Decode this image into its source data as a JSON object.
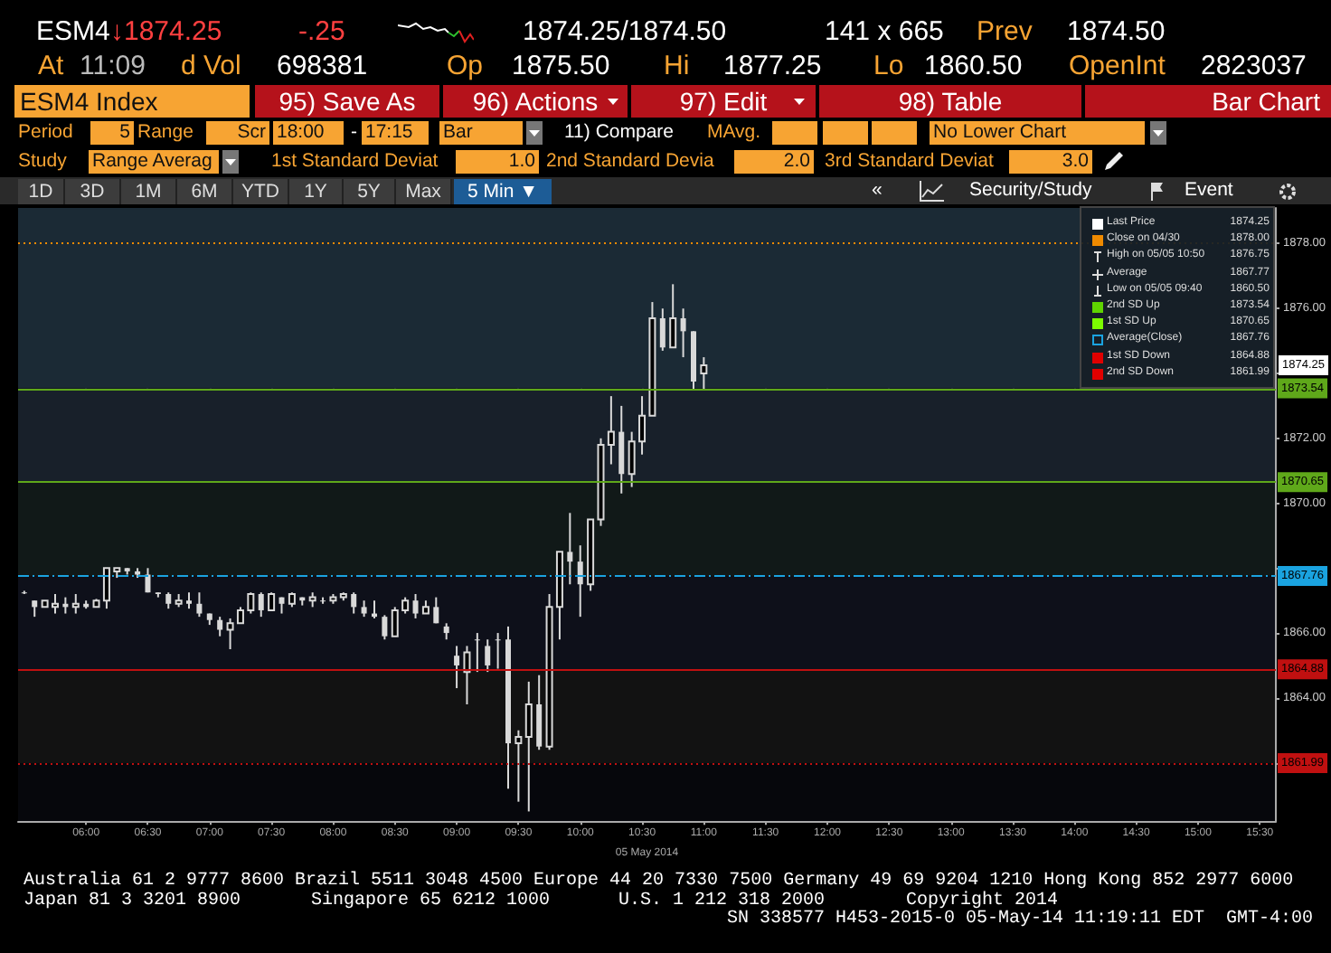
{
  "chart_data": {
    "type": "candlestick",
    "xlabel": "05 May 2014",
    "color": "#d9d9d9",
    "x": [
      5.5,
      5.5833,
      5.6667,
      5.75,
      5.8333,
      5.9167,
      6,
      6.0833,
      6.1667,
      6.25,
      6.3333,
      6.4167,
      6.5,
      6.5833,
      6.6667,
      6.75,
      6.8333,
      6.9167,
      7,
      7.0833,
      7.1667,
      7.25,
      7.3333,
      7.4167,
      7.5,
      7.5833,
      7.6667,
      7.75,
      7.8333,
      7.9167,
      8,
      8.0833,
      8.1667,
      8.25,
      8.3333,
      8.4167,
      8.5,
      8.5833,
      8.6667,
      8.75,
      8.8333,
      8.9167,
      9,
      9.0833,
      9.1667,
      9.25,
      9.3333,
      9.4167,
      9.5,
      9.5833,
      9.6667,
      9.75,
      9.8333,
      9.9167,
      10,
      10.0833,
      10.1667,
      10.25,
      10.3333,
      10.4167,
      10.5,
      10.5833,
      10.6667,
      10.75,
      10.8333,
      10.9167,
      11
    ],
    "ohlc": [
      [
        1867.25,
        1867.3,
        1867.2,
        1867.25
      ],
      [
        1867.0,
        1867.0,
        1866.5,
        1866.8
      ],
      [
        1866.8,
        1867.0,
        1866.8,
        1867.0
      ],
      [
        1866.8,
        1867.2,
        1866.6,
        1866.9
      ],
      [
        1866.9,
        1867.1,
        1866.6,
        1866.8
      ],
      [
        1866.8,
        1867.2,
        1866.6,
        1866.9
      ],
      [
        1866.9,
        1867.0,
        1866.75,
        1866.8
      ],
      [
        1866.8,
        1867.05,
        1866.8,
        1867.0
      ],
      [
        1867.0,
        1868.0,
        1866.75,
        1868.0
      ],
      [
        1867.9,
        1868.0,
        1867.7,
        1868.0
      ],
      [
        1868.0,
        1868.0,
        1867.8,
        1867.9
      ],
      [
        1867.9,
        1868.0,
        1867.7,
        1867.8
      ],
      [
        1867.8,
        1868.0,
        1867.25,
        1867.25
      ],
      [
        1867.25,
        1867.25,
        1867.1,
        1867.2
      ],
      [
        1867.2,
        1867.25,
        1866.75,
        1866.9
      ],
      [
        1866.9,
        1867.2,
        1866.8,
        1867.0
      ],
      [
        1867.0,
        1867.25,
        1866.75,
        1866.9
      ],
      [
        1866.9,
        1867.25,
        1866.5,
        1866.6
      ],
      [
        1866.6,
        1866.6,
        1866.25,
        1866.4
      ],
      [
        1866.4,
        1866.5,
        1865.9,
        1866.1
      ],
      [
        1866.1,
        1866.45,
        1865.5,
        1866.3
      ],
      [
        1866.3,
        1866.8,
        1866.3,
        1866.7
      ],
      [
        1866.7,
        1867.25,
        1866.6,
        1867.2
      ],
      [
        1867.2,
        1867.25,
        1866.5,
        1866.7
      ],
      [
        1866.7,
        1867.25,
        1866.7,
        1867.2
      ],
      [
        1867.1,
        1867.1,
        1866.6,
        1866.9
      ],
      [
        1866.9,
        1867.25,
        1866.8,
        1867.2
      ],
      [
        1867.1,
        1867.1,
        1866.85,
        1867.0
      ],
      [
        1867.0,
        1867.25,
        1866.8,
        1867.1
      ],
      [
        1867.0,
        1867.1,
        1866.9,
        1867.0
      ],
      [
        1867.0,
        1867.2,
        1866.9,
        1867.1
      ],
      [
        1867.1,
        1867.25,
        1867.0,
        1867.2
      ],
      [
        1867.2,
        1867.25,
        1866.6,
        1866.8
      ],
      [
        1866.8,
        1867.0,
        1866.5,
        1866.6
      ],
      [
        1866.6,
        1867.0,
        1866.45,
        1866.5
      ],
      [
        1866.5,
        1866.55,
        1865.8,
        1865.9
      ],
      [
        1865.9,
        1866.8,
        1865.9,
        1866.7
      ],
      [
        1866.7,
        1867.1,
        1866.6,
        1867.0
      ],
      [
        1867.0,
        1867.2,
        1866.45,
        1866.6
      ],
      [
        1866.6,
        1867.0,
        1866.6,
        1866.8
      ],
      [
        1866.8,
        1867.1,
        1866.3,
        1866.3
      ],
      [
        1866.2,
        1866.3,
        1865.8,
        1866.0
      ],
      [
        1865.3,
        1865.6,
        1864.3,
        1865.0
      ],
      [
        1864.8,
        1865.6,
        1863.8,
        1865.4
      ],
      [
        1865.8,
        1866.0,
        1864.8,
        1865.8
      ],
      [
        1865.6,
        1865.8,
        1864.8,
        1865.0
      ],
      [
        1865.8,
        1866.0,
        1864.9,
        1865.8
      ],
      [
        1865.8,
        1866.2,
        1861.2,
        1862.6
      ],
      [
        1862.6,
        1863.0,
        1860.8,
        1862.8
      ],
      [
        1862.8,
        1864.5,
        1860.5,
        1863.8
      ],
      [
        1863.8,
        1864.7,
        1862.4,
        1862.5
      ],
      [
        1862.5,
        1867.2,
        1862.4,
        1866.8
      ],
      [
        1866.8,
        1868.5,
        1865.8,
        1868.5
      ],
      [
        1868.5,
        1869.7,
        1867.5,
        1868.2
      ],
      [
        1868.2,
        1868.7,
        1866.5,
        1867.5
      ],
      [
        1867.5,
        1869.5,
        1867.3,
        1869.5
      ],
      [
        1869.5,
        1872.0,
        1869.3,
        1871.8
      ],
      [
        1871.8,
        1873.3,
        1871.2,
        1872.2
      ],
      [
        1872.2,
        1873.0,
        1870.3,
        1870.9
      ],
      [
        1870.9,
        1872.2,
        1870.5,
        1871.9
      ],
      [
        1871.9,
        1873.3,
        1871.5,
        1872.7
      ],
      [
        1872.7,
        1876.2,
        1872.7,
        1875.7
      ],
      [
        1875.7,
        1876.0,
        1874.7,
        1874.8
      ],
      [
        1874.8,
        1876.75,
        1874.8,
        1875.7
      ],
      [
        1875.7,
        1876.0,
        1874.5,
        1875.3
      ],
      [
        1875.3,
        1875.3,
        1873.5,
        1873.75
      ],
      [
        1874.0,
        1874.5,
        1873.5,
        1874.25
      ]
    ],
    "xlim": [
      5.45,
      15.63
    ],
    "xticks": [
      {
        "value": 6,
        "label": "06:00"
      },
      {
        "value": 6.5,
        "label": "06:30"
      },
      {
        "value": 7,
        "label": "07:00"
      },
      {
        "value": 7.5,
        "label": "07:30"
      },
      {
        "value": 8,
        "label": "08:00"
      },
      {
        "value": 8.5,
        "label": "08:30"
      },
      {
        "value": 9,
        "label": "09:00"
      },
      {
        "value": 9.5,
        "label": "09:30"
      },
      {
        "value": 10,
        "label": "10:00"
      },
      {
        "value": 10.5,
        "label": "10:30"
      },
      {
        "value": 11,
        "label": "11:00"
      },
      {
        "value": 11.5,
        "label": "11:30"
      },
      {
        "value": 12,
        "label": "12:00"
      },
      {
        "value": 12.5,
        "label": "12:30"
      },
      {
        "value": 13,
        "label": "13:00"
      },
      {
        "value": 13.5,
        "label": "13:30"
      },
      {
        "value": 14,
        "label": "14:00"
      },
      {
        "value": 14.5,
        "label": "14:30"
      },
      {
        "value": 15,
        "label": "15:00"
      },
      {
        "value": 15.5,
        "label": "15:30"
      }
    ],
    "ylim": [
      1860.2,
      1879.1
    ],
    "yticks": [
      {
        "value": 1862,
        "label": null
      },
      {
        "value": 1864,
        "label": "1864.00"
      },
      {
        "value": 1866,
        "label": "1866.00"
      },
      {
        "value": 1868,
        "label": null
      },
      {
        "value": 1870,
        "label": "1870.00"
      },
      {
        "value": 1872,
        "label": "1872.00"
      },
      {
        "value": 1874,
        "label": null
      },
      {
        "value": 1876,
        "label": "1876.00"
      },
      {
        "value": 1878,
        "label": "1878.00"
      }
    ],
    "grid": true,
    "bands": [
      {
        "axis": "y",
        "from": 1873.54,
        "to": 1879.1,
        "color": "#1b2a35"
      },
      {
        "axis": "y",
        "from": 1870.65,
        "to": 1873.54,
        "color": "#18202a"
      },
      {
        "axis": "y",
        "from": 1867.76,
        "to": 1870.65,
        "color": "#111918"
      },
      {
        "axis": "y",
        "from": 1864.88,
        "to": 1867.76,
        "color": "#0e101a"
      },
      {
        "axis": "y",
        "from": 1861.99,
        "to": 1864.88,
        "color": "#121212"
      },
      {
        "axis": "y",
        "from": 1860.2,
        "to": 1861.99,
        "color": "#06070c"
      }
    ],
    "ref_lines": [
      {
        "axis": "y",
        "value": 1878,
        "color": "#f08a00",
        "line_style": "dotted"
      },
      {
        "axis": "y",
        "value": 1873.54,
        "label": "1873.54",
        "color": "#5fa81a",
        "line_style": "solid"
      },
      {
        "axis": "y",
        "value": 1870.65,
        "label": "1870.65",
        "color": "#5fa81a",
        "line_style": "solid"
      },
      {
        "axis": "y",
        "value": 1867.76,
        "label": "1867.76",
        "color": "#1aa3e0",
        "line_style": "dashed"
      },
      {
        "axis": "y",
        "value": 1864.88,
        "label": "1864.88",
        "color": "#c01010",
        "line_style": "solid"
      },
      {
        "axis": "y",
        "value": 1861.99,
        "label": "1861.99",
        "color": "#c01010",
        "line_style": "dotted"
      }
    ],
    "annotations": [
      "ESM4",
      "↓1874.25",
      "-.25",
      "1874.25/1874.50",
      "141 x 665",
      "Prev",
      "1874.50",
      "At",
      "11:09",
      "d Vol",
      "698381",
      "Op",
      "1875.50",
      "Hi",
      "1877.25",
      "Lo",
      "1860.50",
      "OpenInt",
      "2823037",
      "ESM4 Index",
      "95) Save As",
      "96) Actions",
      "97) Edit",
      "98) Table",
      "Bar Chart",
      "Period",
      "5",
      "Range",
      "Scr",
      "18:00",
      "-",
      "17:15",
      "Bar",
      "11) Compare",
      "MAvg.",
      "No Lower Chart",
      "Study",
      "Range Averag",
      "1st Standard Deviat",
      "1.0",
      "2nd Standard Devia",
      "2.0",
      "3rd Standard Deviat",
      "3.0",
      "1D",
      "3D",
      "1M",
      "6M",
      "YTD",
      "1Y",
      "5Y",
      "Max",
      "5 Min ▼",
      "«",
      "Security/Study",
      "Event",
      "Last Price",
      "1874.25",
      "Close on 04/30",
      "1878.00",
      "High on 05/05 10:50",
      "1876.75",
      "Average",
      "1867.77",
      "Low on 05/05 09:40",
      "1860.50",
      "2nd SD Up",
      "1873.54",
      "1st SD Up",
      "1870.65",
      "Average(Close)",
      "1867.76",
      "1st SD Down",
      "1864.88",
      "2nd SD Down",
      "1861.99",
      "Australia 61 2 9777 8600 Brazil 5511 3048 4500 Europe 44 20 7330 7500 Germany 49 69 9204 1210 Hong Kong 852 2977 6000",
      "Japan 81 3 3201 8900",
      "Singapore 65 6212 1000",
      "U.S. 1 212 318 2000",
      "Copyright 2014",
      "SN 338577 H453-2015-0 05-May-14 11:19:11 EDT  GMT-4:00",
      {
        "text": "1874.25",
        "y": 1874.25
      }
    ]
  }
}
